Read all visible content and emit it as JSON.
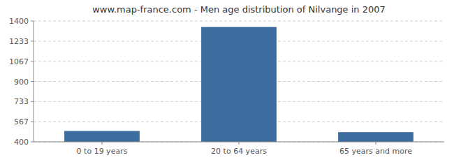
{
  "chart_data": {
    "type": "bar",
    "title": "www.map-france.com - Men age distribution of Nilvange in 2007",
    "categories": [
      "0 to 19 years",
      "20 to 64 years",
      "65 years and more"
    ],
    "values": [
      490,
      1350,
      480
    ],
    "color": "#3d6d9e",
    "ylim": [
      400,
      1400
    ],
    "yticks": [
      400,
      567,
      733,
      900,
      1067,
      1233,
      1400
    ],
    "grid": true
  }
}
